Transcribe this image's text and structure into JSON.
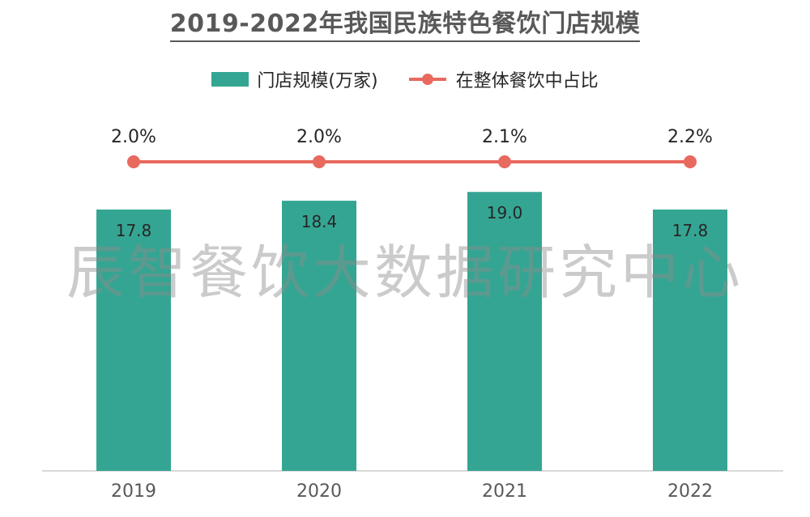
{
  "title": "2019-2022年我国民族特色餐饮门店规模",
  "watermark": "辰智餐饮大数据研究中心",
  "legend": {
    "bar_label": "门店规模(万家)",
    "line_label": "在整体餐饮中占比"
  },
  "colors": {
    "bar": "#35A593",
    "line": "#E8695E",
    "axis": "#D9D9D9",
    "text": "#262626",
    "tick": "#595959"
  },
  "chart_data": {
    "type": "bar",
    "categories": [
      "2019",
      "2020",
      "2021",
      "2022"
    ],
    "series": [
      {
        "name": "门店规模(万家)",
        "type": "bar",
        "values": [
          17.8,
          18.4,
          19.0,
          17.8
        ],
        "labels": [
          "17.8",
          "18.4",
          "19.0",
          "17.8"
        ]
      },
      {
        "name": "在整体餐饮中占比",
        "type": "line",
        "values": [
          2.0,
          2.0,
          2.1,
          2.2
        ],
        "labels": [
          "2.0%",
          "2.0%",
          "2.1%",
          "2.2%"
        ]
      }
    ],
    "title": "2019-2022年我国民族特色餐饮门店规模",
    "legend_position": "top",
    "grid": false
  }
}
